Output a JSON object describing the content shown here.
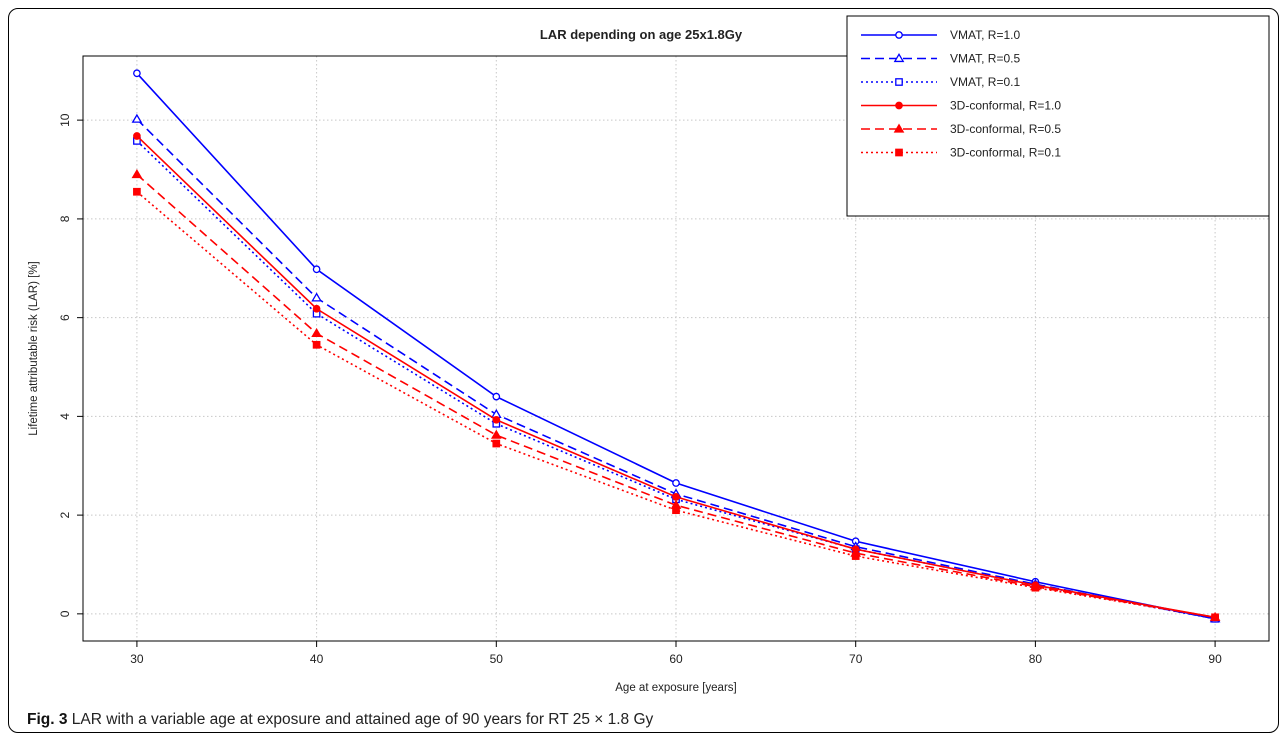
{
  "caption": {
    "label": "Fig. 3",
    "text": "LAR with a variable age at exposure and attained age of 90 years for RT 25 × 1.8 Gy"
  },
  "chart_data": {
    "type": "line",
    "title": "LAR depending on age 25x1.8Gy",
    "xlabel": "Age at exposure [years]",
    "ylabel": "Lifetime attributable risk (LAR) [%]",
    "xlim": [
      27,
      93
    ],
    "ylim": [
      -0.55,
      11.3
    ],
    "xticks": [
      30,
      40,
      50,
      60,
      70,
      80,
      90
    ],
    "yticks": [
      0,
      2,
      4,
      6,
      8,
      10
    ],
    "grid": true,
    "legend_position": "top-right",
    "x": [
      30,
      40,
      50,
      60,
      70,
      80,
      90
    ],
    "series": [
      {
        "name": "VMAT, R=1.0",
        "color": "#0000ff",
        "dash": "solid",
        "marker": "circle-open",
        "values": [
          10.95,
          6.98,
          4.4,
          2.65,
          1.47,
          0.65,
          -0.1
        ]
      },
      {
        "name": "VMAT, R=0.5",
        "color": "#0000ff",
        "dash": "dashed",
        "marker": "triangle-open",
        "values": [
          10.02,
          6.4,
          4.04,
          2.43,
          1.36,
          0.6,
          -0.1
        ]
      },
      {
        "name": "VMAT, R=0.1",
        "color": "#0000ff",
        "dash": "dotted",
        "marker": "square-open",
        "values": [
          9.58,
          6.08,
          3.85,
          2.32,
          1.31,
          0.58,
          -0.1
        ]
      },
      {
        "name": "3D-conformal, R=1.0",
        "color": "#ff0000",
        "dash": "solid",
        "marker": "circle-filled",
        "values": [
          9.68,
          6.18,
          3.93,
          2.37,
          1.31,
          0.58,
          -0.07
        ]
      },
      {
        "name": "3D-conformal, R=0.5",
        "color": "#ff0000",
        "dash": "dashed",
        "marker": "triangle-filled",
        "values": [
          8.9,
          5.68,
          3.62,
          2.2,
          1.23,
          0.55,
          -0.07
        ]
      },
      {
        "name": "3D-conformal, R=0.1",
        "color": "#ff0000",
        "dash": "dotted",
        "marker": "square-filled",
        "values": [
          8.55,
          5.45,
          3.45,
          2.1,
          1.17,
          0.53,
          -0.07
        ]
      }
    ]
  }
}
